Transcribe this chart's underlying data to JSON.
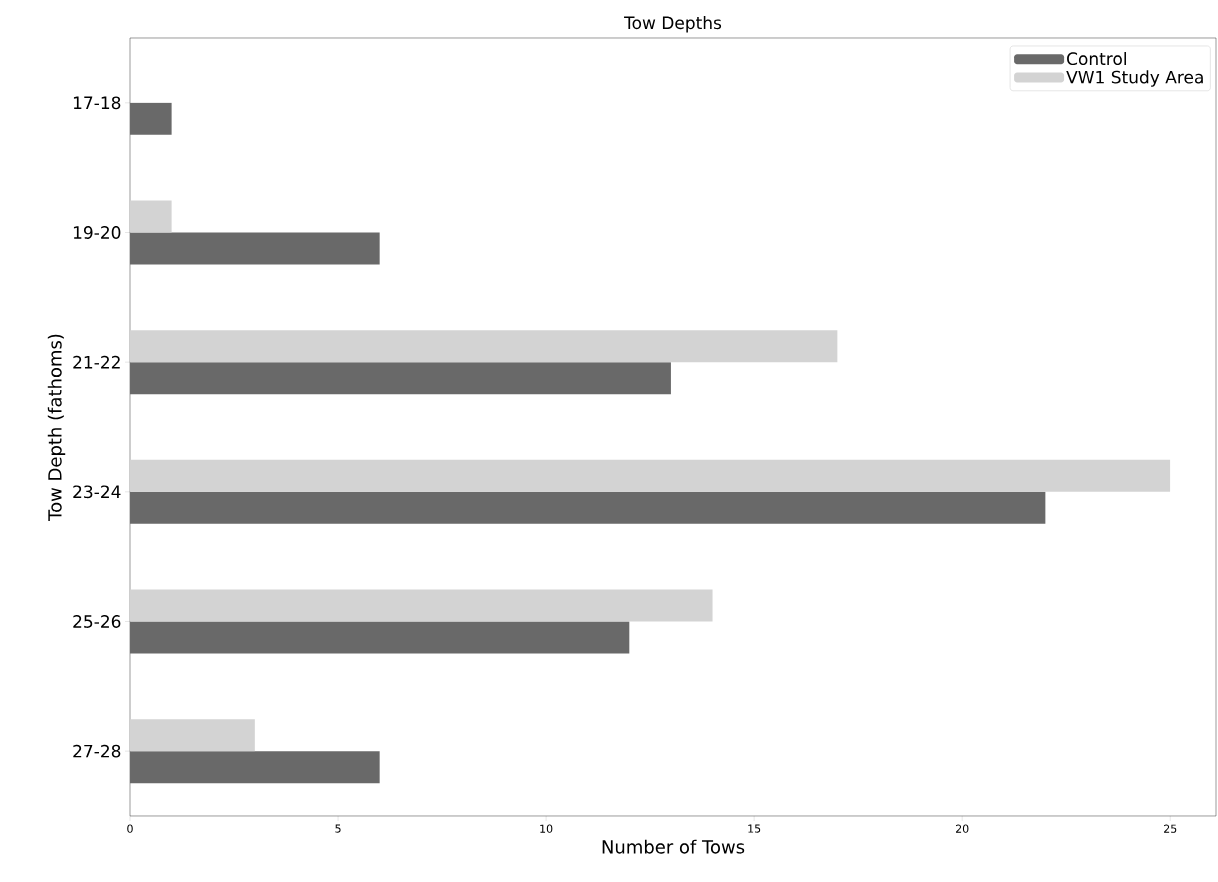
{
  "chart_data": {
    "type": "bar",
    "orientation": "horizontal",
    "title": "Tow Depths",
    "xlabel": "Number of Tows",
    "ylabel": "Tow Depth (fathoms)",
    "categories": [
      "17-18",
      "19-20",
      "21-22",
      "23-24",
      "25-26",
      "27-28"
    ],
    "series": [
      {
        "name": "Control",
        "color": "#696969",
        "values": [
          1,
          6,
          13,
          22,
          12,
          6
        ]
      },
      {
        "name": "VW1 Study Area",
        "color": "#d3d3d3",
        "values": [
          0,
          1,
          17,
          25,
          14,
          3
        ]
      }
    ],
    "xlim": [
      0,
      26.1
    ],
    "xticks": [
      0,
      5,
      10,
      15,
      20,
      25
    ],
    "legend": "top right"
  }
}
